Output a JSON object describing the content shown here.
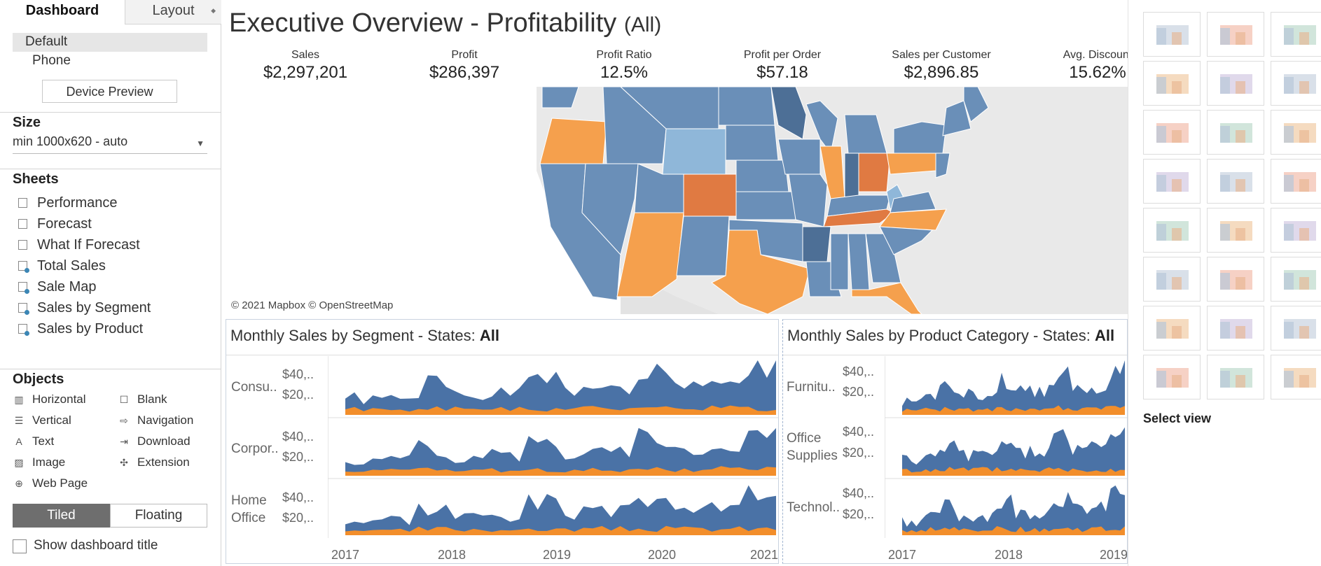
{
  "left_panel": {
    "tabs": {
      "dashboard": "Dashboard",
      "layout": "Layout"
    },
    "devices": [
      "Default",
      "Phone"
    ],
    "device_preview_button": "Device Preview",
    "size": {
      "heading": "Size",
      "value": "min 1000x620 - auto"
    },
    "sheets": {
      "heading": "Sheets",
      "items": [
        "Performance",
        "Forecast",
        "What If Forecast",
        "Total Sales",
        "Sale Map",
        "Sales by Segment",
        "Sales by Product"
      ]
    },
    "objects": {
      "heading": "Objects",
      "items": [
        "Horizontal",
        "Blank",
        "Vertical",
        "Navigation",
        "Text",
        "Download",
        "Image",
        "Extension",
        "Web Page"
      ]
    },
    "tiled_label": "Tiled",
    "floating_label": "Floating",
    "show_title_label": "Show dashboard title"
  },
  "dashboard": {
    "title": "Executive Overview - Profitability",
    "title_filter": "(All)",
    "kpis": [
      {
        "label": "Sales",
        "value": "$2,297,201"
      },
      {
        "label": "Profit",
        "value": "$286,397"
      },
      {
        "label": "Profit Ratio",
        "value": "12.5%"
      },
      {
        "label": "Profit per Order",
        "value": "$57.18"
      },
      {
        "label": "Sales per Customer",
        "value": "$2,896.85"
      },
      {
        "label": "Avg. Discount",
        "value": "15.62%"
      }
    ],
    "map_attribution": "© 2021 Mapbox © OpenStreetMap",
    "colors": {
      "states_blue": "#6a8fb8",
      "states_orange": "#f5a04d",
      "sales_blue": "#4a72a6",
      "profit_orange": "#f28e2b"
    },
    "segment_panel": {
      "title": "Monthly Sales by Segment - States: ",
      "title_bold": "All",
      "rows": [
        {
          "label": "Consu..",
          "ticks": [
            "$40,..",
            "$20,.."
          ]
        },
        {
          "label": "Corpor..",
          "ticks": [
            "$40,..",
            "$20,.."
          ]
        },
        {
          "label": "Home Office",
          "ticks": [
            "$40,..",
            "$20,.."
          ]
        }
      ],
      "years": [
        "2017",
        "2018",
        "2019",
        "2020",
        "2021"
      ]
    },
    "category_panel": {
      "title": "Monthly Sales by Product Category - States: ",
      "title_bold": "All",
      "rows": [
        {
          "label": "Furnitu..",
          "ticks": [
            "$40,..",
            "$20,.."
          ]
        },
        {
          "label": "Office Supplies",
          "ticks": [
            "$40,..",
            "$20,.."
          ]
        },
        {
          "label": "Technol..",
          "ticks": [
            "$40,..",
            "$20,.."
          ]
        }
      ],
      "years": [
        "2017",
        "2018",
        "2019"
      ]
    }
  },
  "right_panel": {
    "select_view_label": "Select view"
  }
}
